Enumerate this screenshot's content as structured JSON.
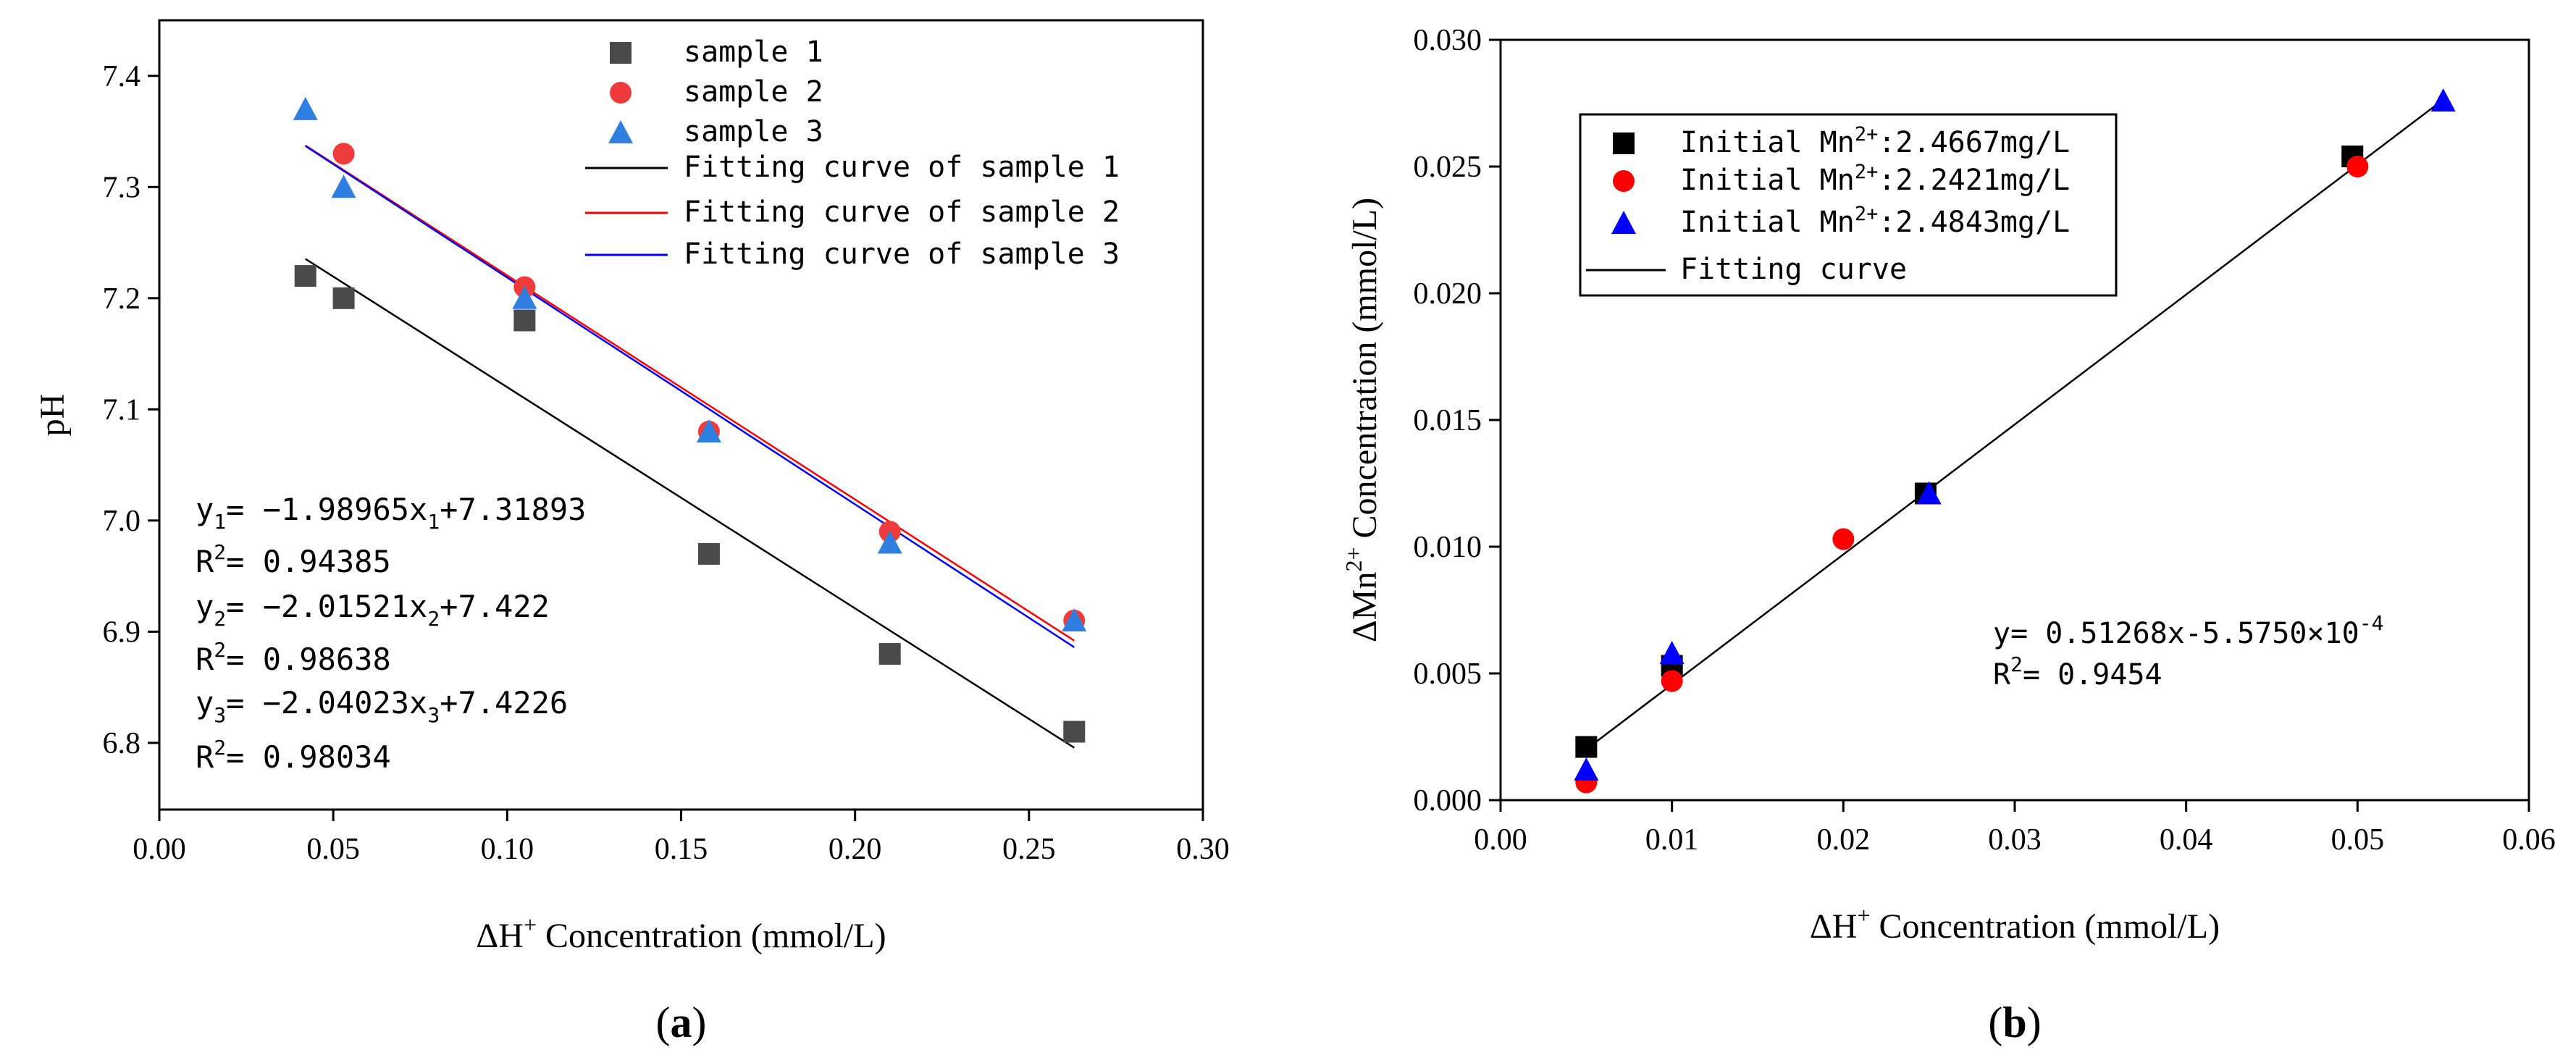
{
  "chart_data": [
    {
      "type": "scatter",
      "panel_label": "a",
      "title": "",
      "xlabel": "ΔH",
      "xlabel_sup": "+",
      "xlabel_rest": " Concentration (mmol/L)",
      "ylabel": "pH",
      "xlim": [
        0.0,
        0.3
      ],
      "ylim": [
        6.74,
        7.45
      ],
      "xticks": [
        0.0,
        0.05,
        0.1,
        0.15,
        0.2,
        0.25,
        0.3
      ],
      "xtick_labels": [
        "0.00",
        "0.05",
        "0.10",
        "0.15",
        "0.20",
        "0.25",
        "0.30"
      ],
      "yticks": [
        6.8,
        6.9,
        7.0,
        7.1,
        7.2,
        7.3,
        7.4
      ],
      "ytick_labels": [
        "6.8",
        "6.9",
        "7.0",
        "7.1",
        "7.2",
        "7.3",
        "7.4"
      ],
      "legend_position": "top-right",
      "series": [
        {
          "name": "sample 1",
          "marker": "square",
          "color": "#4a4a4a",
          "x": [
            0.042,
            0.053,
            0.105,
            0.158,
            0.21,
            0.263
          ],
          "y": [
            7.22,
            7.2,
            7.18,
            6.97,
            6.88,
            6.81
          ]
        },
        {
          "name": "sample 2",
          "marker": "circle",
          "color": "#ef3b3b",
          "x": [
            0.053,
            0.105,
            0.158,
            0.21,
            0.263
          ],
          "y": [
            7.33,
            7.21,
            7.08,
            6.99,
            6.91
          ]
        },
        {
          "name": "sample 3",
          "marker": "triangle",
          "color": "#2f7fe0",
          "x": [
            0.042,
            0.053,
            0.105,
            0.158,
            0.21,
            0.263
          ],
          "y": [
            7.37,
            7.3,
            7.2,
            7.08,
            6.98,
            6.91
          ]
        }
      ],
      "fits": [
        {
          "name": "Fitting curve of sample 1",
          "color": "#000000",
          "slope": -1.98965,
          "intercept": 7.31893,
          "x_range": [
            0.042,
            0.263
          ]
        },
        {
          "name": "Fitting curve of sample 2",
          "color": "#ff0000",
          "slope": -2.01521,
          "intercept": 7.422,
          "x_range": [
            0.042,
            0.263
          ]
        },
        {
          "name": "Fitting curve of sample 3",
          "color": "#0000ff",
          "slope": -2.04023,
          "intercept": 7.4226,
          "x_range": [
            0.042,
            0.263
          ]
        }
      ],
      "annotations": [
        {
          "main": "y",
          "sub": "1",
          "rest": "= −1.98965x",
          "sub2": "1",
          "tail": "+7.31893"
        },
        {
          "main": "R",
          "sup": "2",
          "rest": "= 0.94385"
        },
        {
          "main": "y",
          "sub": "2",
          "rest": "= −2.01521x",
          "sub2": "2",
          "tail": "+7.422"
        },
        {
          "main": "R",
          "sup": "2",
          "rest": "= 0.98638"
        },
        {
          "main": "y",
          "sub": "3",
          "rest": "= −2.04023x",
          "sub2": "3",
          "tail": "+7.4226"
        },
        {
          "main": "R",
          "sup": "2",
          "rest": "= 0.98034"
        }
      ]
    },
    {
      "type": "scatter",
      "panel_label": "b",
      "title": "",
      "xlabel": "ΔH",
      "xlabel_sup": "+",
      "xlabel_rest": " Concentration (mmol/L)",
      "ylabel": "ΔMn",
      "ylabel_sup": "2+",
      "ylabel_rest": " Concentration (mmol/L)",
      "xlim": [
        0.0,
        0.06
      ],
      "ylim": [
        0.0,
        0.03
      ],
      "xticks": [
        0.0,
        0.01,
        0.02,
        0.03,
        0.04,
        0.05,
        0.06
      ],
      "xtick_labels": [
        "0.00",
        "0.01",
        "0.02",
        "0.03",
        "0.04",
        "0.05",
        "0.06"
      ],
      "yticks": [
        0.0,
        0.005,
        0.01,
        0.015,
        0.02,
        0.025,
        0.03
      ],
      "ytick_labels": [
        "0.000",
        "0.005",
        "0.010",
        "0.015",
        "0.020",
        "0.025",
        "0.030"
      ],
      "legend_position": "top-left",
      "series": [
        {
          "name": "Initial Mn2+:2.4667mg/L",
          "legend_pre": "Initial Mn",
          "legend_sup": "2+",
          "legend_post": ":2.4667mg/L",
          "marker": "square",
          "color": "#000000",
          "x": [
            0.005,
            0.01,
            0.0248,
            0.0497
          ],
          "y": [
            0.0021,
            0.0053,
            0.0121,
            0.0254
          ]
        },
        {
          "name": "Initial Mn2+:2.2421mg/L",
          "legend_pre": "Initial Mn",
          "legend_sup": "2+",
          "legend_post": ":2.2421mg/L",
          "marker": "circle",
          "color": "#ff0000",
          "x": [
            0.005,
            0.01,
            0.02,
            0.05
          ],
          "y": [
            0.0007,
            0.0047,
            0.0103,
            0.025
          ]
        },
        {
          "name": "Initial Mn2+:2.4843mg/L",
          "legend_pre": "Initial Mn",
          "legend_sup": "2+",
          "legend_post": ":2.4843mg/L",
          "marker": "triangle",
          "color": "#0000ff",
          "x": [
            0.005,
            0.01,
            0.025,
            0.055
          ],
          "y": [
            0.0012,
            0.0058,
            0.0121,
            0.0276
          ]
        }
      ],
      "fits": [
        {
          "name": "Fitting curve",
          "color": "#000000",
          "slope": 0.51268,
          "intercept": -0.0005575,
          "x_range": [
            0.005,
            0.055
          ]
        }
      ],
      "annotations": [
        {
          "main": "y= 0.51268x-5.5750×10",
          "sup": "-4"
        },
        {
          "main": "R",
          "sup": "2",
          "rest": "= 0.9454"
        }
      ]
    }
  ]
}
